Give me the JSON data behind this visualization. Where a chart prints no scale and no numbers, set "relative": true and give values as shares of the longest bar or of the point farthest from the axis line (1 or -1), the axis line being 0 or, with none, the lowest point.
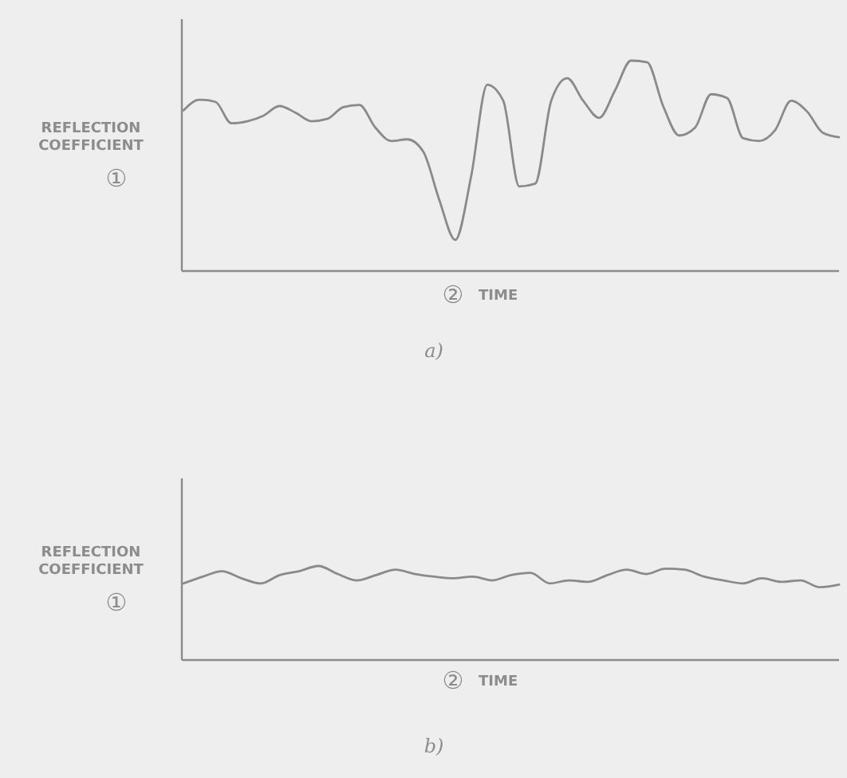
{
  "chart_data": [
    {
      "type": "line",
      "title": "a)",
      "ylabel": "REFLECTION COEFFICIENT",
      "xlabel": "TIME",
      "annotations": [
        "①",
        "②"
      ],
      "relative": true,
      "categories": [
        null,
        null,
        null,
        null,
        null,
        null,
        null,
        null,
        null,
        null,
        null,
        null,
        null,
        null,
        null,
        null,
        null,
        null,
        null,
        null,
        null,
        null,
        null,
        null,
        null,
        null,
        null,
        null,
        null,
        null,
        null,
        null,
        null,
        null,
        null,
        null,
        null,
        null,
        null,
        null,
        null,
        null
      ],
      "series": [
        {
          "color": "#8a8a8a",
          "values": [
            0.763,
            0.814,
            0.804,
            0.702,
            0.712,
            0.738,
            0.784,
            0.753,
            0.712,
            0.723,
            0.779,
            0.789,
            0.682,
            0.618,
            0.626,
            0.567,
            0.338,
            0.148,
            0.453,
            0.885,
            0.809,
            0.402,
            0.415,
            0.809,
            0.916,
            0.809,
            0.728,
            0.86,
            1,
            0.992,
            0.784,
            0.644,
            0.682,
            0.84,
            0.822,
            0.631,
            0.618,
            0.669,
            0.809,
            0.758,
            0.656,
            0.636
          ]
        }
      ]
    },
    {
      "type": "line",
      "title": "b)",
      "ylabel": "REFLECTION COEFFICIENT",
      "xlabel": "TIME",
      "annotations": [
        "①",
        "②"
      ],
      "relative": true,
      "categories": [
        null,
        null,
        null,
        null,
        null,
        null,
        null,
        null,
        null,
        null,
        null,
        null,
        null,
        null,
        null,
        null,
        null,
        null,
        null,
        null,
        null,
        null,
        null,
        null,
        null,
        null,
        null,
        null,
        null,
        null,
        null,
        null,
        null,
        null,
        null
      ],
      "series": [
        {
          "color": "#8a8a8a",
          "values": [
            0.814,
            0.887,
            0.944,
            0.87,
            0.814,
            0.904,
            0.944,
            1,
            0.915,
            0.847,
            0.904,
            0.96,
            0.915,
            0.887,
            0.87,
            0.887,
            0.847,
            0.904,
            0.927,
            0.814,
            0.847,
            0.831,
            0.904,
            0.96,
            0.915,
            0.972,
            0.96,
            0.887,
            0.847,
            0.814,
            0.87,
            0.831,
            0.847,
            0.774,
            0.802
          ]
        }
      ]
    }
  ]
}
